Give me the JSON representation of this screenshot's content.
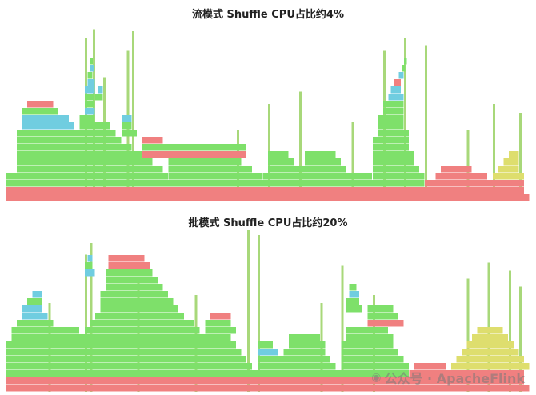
{
  "panels": [
    {
      "title": "流模式 Shuffle CPU占比约4%",
      "id": "stream",
      "frames": [
        [
          0.0,
          1.0,
          0,
          "red"
        ],
        [
          0.0,
          0.99,
          1,
          "red"
        ],
        [
          0.0,
          0.8,
          2,
          "green"
        ],
        [
          0.8,
          0.19,
          2,
          "red"
        ],
        [
          0.0,
          0.31,
          3,
          "green"
        ],
        [
          0.31,
          0.18,
          3,
          "green"
        ],
        [
          0.49,
          0.21,
          3,
          "green"
        ],
        [
          0.7,
          0.1,
          3,
          "green"
        ],
        [
          0.82,
          0.1,
          3,
          "red"
        ],
        [
          0.93,
          0.06,
          3,
          "yellow"
        ],
        [
          0.02,
          0.28,
          4,
          "green"
        ],
        [
          0.31,
          0.16,
          4,
          "green"
        ],
        [
          0.5,
          0.15,
          4,
          "green"
        ],
        [
          0.7,
          0.09,
          4,
          "green"
        ],
        [
          0.83,
          0.06,
          4,
          "red"
        ],
        [
          0.94,
          0.04,
          4,
          "yellow"
        ],
        [
          0.02,
          0.26,
          5,
          "green"
        ],
        [
          0.31,
          0.14,
          5,
          "green"
        ],
        [
          0.5,
          0.05,
          5,
          "green"
        ],
        [
          0.57,
          0.07,
          5,
          "green"
        ],
        [
          0.7,
          0.08,
          5,
          "green"
        ],
        [
          0.95,
          0.03,
          5,
          "yellow"
        ],
        [
          0.02,
          0.25,
          6,
          "green"
        ],
        [
          0.26,
          0.2,
          6,
          "red"
        ],
        [
          0.5,
          0.04,
          6,
          "green"
        ],
        [
          0.57,
          0.06,
          6,
          "green"
        ],
        [
          0.7,
          0.08,
          6,
          "green"
        ],
        [
          0.96,
          0.02,
          6,
          "yellow"
        ],
        [
          0.02,
          0.22,
          7,
          "green"
        ],
        [
          0.26,
          0.2,
          7,
          "green"
        ],
        [
          0.7,
          0.07,
          7,
          "green"
        ],
        [
          0.02,
          0.2,
          8,
          "green"
        ],
        [
          0.26,
          0.04,
          8,
          "red"
        ],
        [
          0.7,
          0.07,
          8,
          "green"
        ],
        [
          0.02,
          0.11,
          9,
          "green"
        ],
        [
          0.13,
          0.08,
          9,
          "green"
        ],
        [
          0.22,
          0.03,
          9,
          "green"
        ],
        [
          0.71,
          0.06,
          9,
          "green"
        ],
        [
          0.03,
          0.1,
          10,
          "cyan"
        ],
        [
          0.14,
          0.06,
          10,
          "green"
        ],
        [
          0.22,
          0.02,
          10,
          "green"
        ],
        [
          0.71,
          0.05,
          10,
          "green"
        ],
        [
          0.03,
          0.09,
          11,
          "cyan"
        ],
        [
          0.14,
          0.03,
          11,
          "green"
        ],
        [
          0.22,
          0.02,
          11,
          "cyan"
        ],
        [
          0.71,
          0.05,
          11,
          "green"
        ],
        [
          0.03,
          0.07,
          12,
          "green"
        ],
        [
          0.15,
          0.02,
          12,
          "cyan"
        ],
        [
          0.72,
          0.04,
          12,
          "green"
        ],
        [
          0.04,
          0.05,
          13,
          "red"
        ],
        [
          0.15,
          0.02,
          13,
          "green"
        ],
        [
          0.72,
          0.04,
          13,
          "green"
        ],
        [
          0.15,
          0.02,
          14,
          "green"
        ],
        [
          0.17,
          0.015,
          14,
          "green"
        ],
        [
          0.73,
          0.03,
          14,
          "cyan"
        ],
        [
          0.15,
          0.02,
          15,
          "cyan"
        ],
        [
          0.175,
          0.01,
          15,
          "cyan"
        ],
        [
          0.735,
          0.02,
          15,
          "cyan"
        ],
        [
          0.155,
          0.015,
          16,
          "cyan"
        ],
        [
          0.74,
          0.015,
          16,
          "red"
        ],
        [
          0.155,
          0.01,
          17,
          "green"
        ],
        [
          0.75,
          0.01,
          17,
          "cyan"
        ],
        [
          0.16,
          0.008,
          18,
          "cyan"
        ],
        [
          0.755,
          0.008,
          18,
          "green"
        ],
        [
          0.16,
          0.006,
          19,
          "green"
        ],
        [
          0.76,
          0.006,
          19,
          "green"
        ]
      ],
      "spikes": [
        [
          0.15,
          0.92
        ],
        [
          0.165,
          0.97
        ],
        [
          0.185,
          0.7
        ],
        [
          0.23,
          0.85
        ],
        [
          0.24,
          0.96
        ],
        [
          0.5,
          0.55
        ],
        [
          0.56,
          0.62
        ],
        [
          0.72,
          0.85
        ],
        [
          0.76,
          0.92
        ],
        [
          0.8,
          0.88
        ],
        [
          0.93,
          0.55
        ],
        [
          0.98,
          0.5
        ],
        [
          0.44,
          0.4
        ],
        [
          0.66,
          0.45
        ],
        [
          0.88,
          0.4
        ]
      ]
    },
    {
      "title": "批模式 Shuffle CPU占比约20%",
      "id": "batch",
      "frames": [
        [
          0.0,
          1.0,
          0,
          "red"
        ],
        [
          0.0,
          0.99,
          1,
          "red"
        ],
        [
          0.0,
          0.77,
          2,
          "green"
        ],
        [
          0.77,
          0.22,
          2,
          "red"
        ],
        [
          0.0,
          0.47,
          3,
          "green"
        ],
        [
          0.48,
          0.15,
          3,
          "green"
        ],
        [
          0.64,
          0.13,
          3,
          "green"
        ],
        [
          0.78,
          0.06,
          3,
          "red"
        ],
        [
          0.85,
          0.15,
          3,
          "yellow"
        ],
        [
          0.0,
          0.46,
          4,
          "green"
        ],
        [
          0.48,
          0.14,
          4,
          "green"
        ],
        [
          0.64,
          0.12,
          4,
          "green"
        ],
        [
          0.86,
          0.13,
          4,
          "yellow"
        ],
        [
          0.0,
          0.45,
          5,
          "green"
        ],
        [
          0.48,
          0.04,
          5,
          "cyan"
        ],
        [
          0.53,
          0.08,
          5,
          "green"
        ],
        [
          0.64,
          0.11,
          5,
          "green"
        ],
        [
          0.87,
          0.11,
          5,
          "yellow"
        ],
        [
          0.0,
          0.44,
          6,
          "green"
        ],
        [
          0.48,
          0.03,
          6,
          "green"
        ],
        [
          0.54,
          0.07,
          6,
          "green"
        ],
        [
          0.64,
          0.1,
          6,
          "green"
        ],
        [
          0.88,
          0.09,
          6,
          "yellow"
        ],
        [
          0.01,
          0.42,
          7,
          "green"
        ],
        [
          0.54,
          0.06,
          7,
          "green"
        ],
        [
          0.65,
          0.09,
          7,
          "green"
        ],
        [
          0.89,
          0.07,
          7,
          "yellow"
        ],
        [
          0.01,
          0.13,
          8,
          "green"
        ],
        [
          0.15,
          0.22,
          8,
          "green"
        ],
        [
          0.38,
          0.06,
          8,
          "green"
        ],
        [
          0.65,
          0.08,
          8,
          "green"
        ],
        [
          0.9,
          0.05,
          8,
          "yellow"
        ],
        [
          0.02,
          0.07,
          9,
          "green"
        ],
        [
          0.16,
          0.2,
          9,
          "green"
        ],
        [
          0.38,
          0.05,
          9,
          "green"
        ],
        [
          0.69,
          0.07,
          9,
          "red"
        ],
        [
          0.03,
          0.05,
          10,
          "cyan"
        ],
        [
          0.17,
          0.17,
          10,
          "green"
        ],
        [
          0.39,
          0.04,
          10,
          "red"
        ],
        [
          0.69,
          0.06,
          10,
          "green"
        ],
        [
          0.03,
          0.04,
          11,
          "cyan"
        ],
        [
          0.18,
          0.15,
          11,
          "green"
        ],
        [
          0.65,
          0.03,
          11,
          "green"
        ],
        [
          0.69,
          0.05,
          11,
          "green"
        ],
        [
          0.04,
          0.03,
          12,
          "green"
        ],
        [
          0.18,
          0.14,
          12,
          "green"
        ],
        [
          0.65,
          0.025,
          12,
          "green"
        ],
        [
          0.05,
          0.02,
          13,
          "cyan"
        ],
        [
          0.18,
          0.13,
          13,
          "green"
        ],
        [
          0.655,
          0.02,
          13,
          "cyan"
        ],
        [
          0.19,
          0.11,
          14,
          "green"
        ],
        [
          0.655,
          0.015,
          14,
          "green"
        ],
        [
          0.19,
          0.1,
          15,
          "green"
        ],
        [
          0.19,
          0.09,
          16,
          "green"
        ],
        [
          0.15,
          0.02,
          16,
          "cyan"
        ],
        [
          0.195,
          0.08,
          17,
          "red"
        ],
        [
          0.15,
          0.015,
          17,
          "green"
        ],
        [
          0.195,
          0.07,
          18,
          "red"
        ],
        [
          0.155,
          0.01,
          18,
          "cyan"
        ]
      ],
      "spikes": [
        [
          0.15,
          0.85
        ],
        [
          0.16,
          0.92
        ],
        [
          0.46,
          1.0
        ],
        [
          0.48,
          0.97
        ],
        [
          0.64,
          0.78
        ],
        [
          0.7,
          0.6
        ],
        [
          0.88,
          0.7
        ],
        [
          0.92,
          0.8
        ],
        [
          0.96,
          0.75
        ],
        [
          0.98,
          0.65
        ],
        [
          0.25,
          0.7
        ],
        [
          0.08,
          0.55
        ],
        [
          0.36,
          0.6
        ],
        [
          0.6,
          0.55
        ]
      ]
    }
  ],
  "colors": {
    "green": "#7ee06a",
    "red": "#f08080",
    "cyan": "#70cde0",
    "yellow": "#dede6e",
    "spike": "#a8d87a",
    "outline": "#ffffff"
  },
  "watermark": {
    "text": "公众号 · ApacheFlink",
    "icon": "wechat-icon"
  }
}
